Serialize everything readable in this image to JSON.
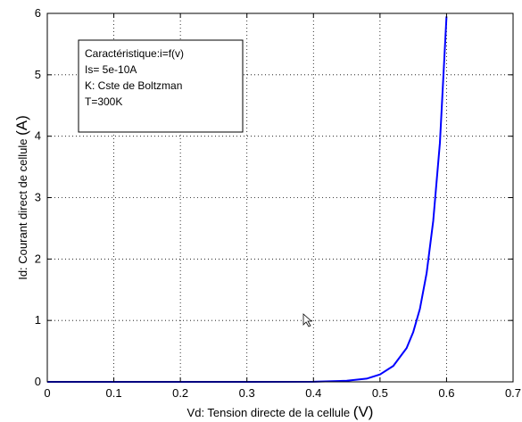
{
  "chart_data": {
    "type": "line",
    "xlabel": "Vd: Tension directe de la cellule",
    "xlabel_unit": "(V)",
    "ylabel": "Id: Courant direct de cellule",
    "ylabel_unit": "(A)",
    "xlim": [
      0,
      0.7
    ],
    "ylim": [
      0,
      6
    ],
    "xticks": [
      "0",
      "0.1",
      "0.2",
      "0.3",
      "0.4",
      "0.5",
      "0.6",
      "0.7"
    ],
    "yticks": [
      "0",
      "1",
      "2",
      "3",
      "4",
      "5",
      "6"
    ],
    "grid": true,
    "annotation_lines": [
      "Caractéristique:i=f(v)",
      "Is= 5e-10A",
      "K: Cste de Boltzman",
      "T=300K"
    ],
    "series": [
      {
        "color": "#0000ff",
        "x": [
          0,
          0.1,
          0.2,
          0.3,
          0.4,
          0.45,
          0.48,
          0.5,
          0.52,
          0.54,
          0.55,
          0.56,
          0.57,
          0.58,
          0.59,
          0.6
        ],
        "y": [
          0,
          0,
          0,
          0,
          0.002,
          0.017,
          0.053,
          0.12,
          0.26,
          0.55,
          0.81,
          1.19,
          1.77,
          2.62,
          3.89,
          5.95
        ]
      }
    ]
  }
}
